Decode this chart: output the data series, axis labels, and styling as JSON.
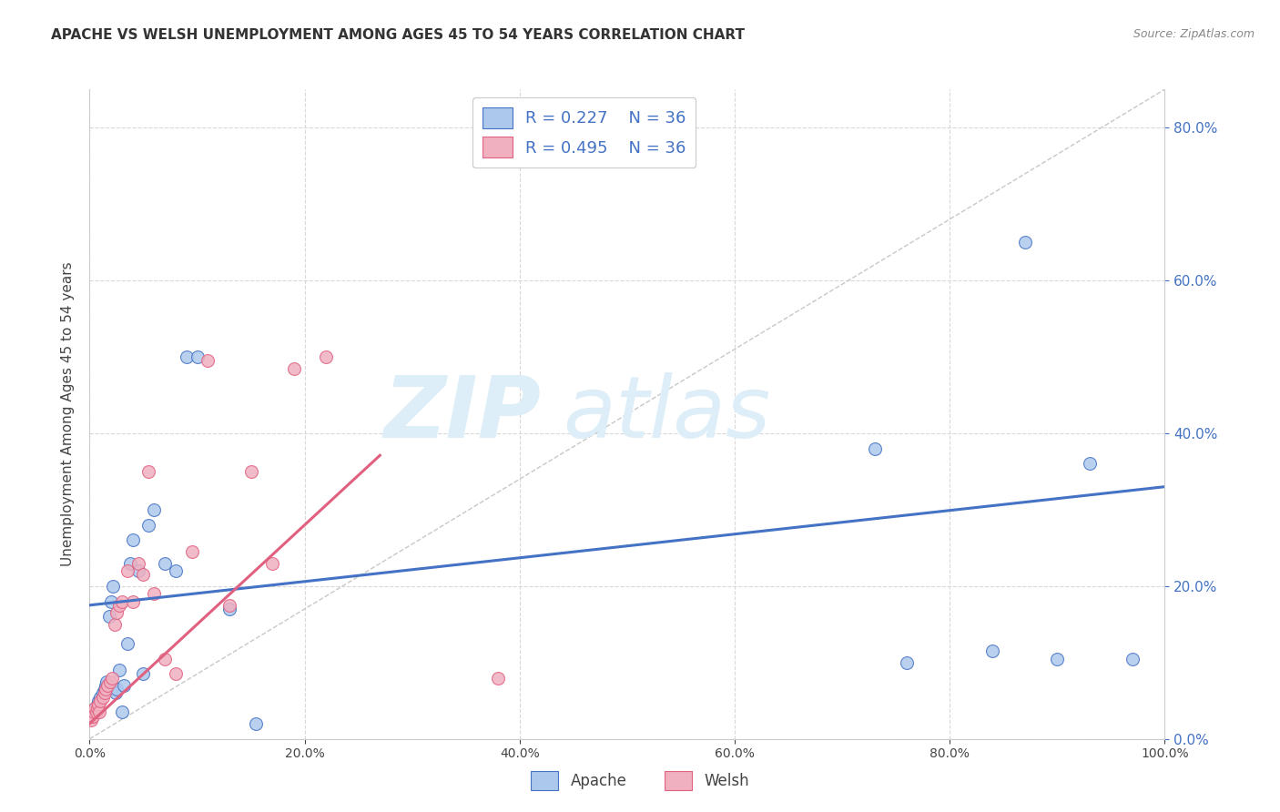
{
  "title": "APACHE VS WELSH UNEMPLOYMENT AMONG AGES 45 TO 54 YEARS CORRELATION CHART",
  "source": "Source: ZipAtlas.com",
  "ylabel": "Unemployment Among Ages 45 to 54 years",
  "xlim": [
    0.0,
    1.0
  ],
  "ylim": [
    0.0,
    0.85
  ],
  "apache_R": "0.227",
  "apache_N": "36",
  "welsh_R": "0.495",
  "welsh_N": "36",
  "apache_color": "#adc8ed",
  "welsh_color": "#f0b0c0",
  "apache_line_color": "#4472c4",
  "welsh_line_color": "#e06080",
  "diagonal_color": "#c8c8c8",
  "background_color": "#ffffff",
  "grid_color": "#d8d8d8",
  "legend_text_color": "#4472c4",
  "right_axis_color": "#4472c4",
  "apache_x": [
    0.005,
    0.007,
    0.008,
    0.01,
    0.012,
    0.014,
    0.015,
    0.016,
    0.018,
    0.02,
    0.022,
    0.024,
    0.025,
    0.028,
    0.03,
    0.032,
    0.035,
    0.038,
    0.04,
    0.045,
    0.05,
    0.055,
    0.06,
    0.07,
    0.08,
    0.09,
    0.1,
    0.13,
    0.155,
    0.73,
    0.76,
    0.84,
    0.87,
    0.9,
    0.93,
    0.97
  ],
  "apache_y": [
    0.04,
    0.045,
    0.05,
    0.055,
    0.06,
    0.065,
    0.07,
    0.075,
    0.16,
    0.18,
    0.2,
    0.06,
    0.065,
    0.09,
    0.035,
    0.07,
    0.125,
    0.23,
    0.26,
    0.22,
    0.085,
    0.28,
    0.3,
    0.23,
    0.22,
    0.5,
    0.5,
    0.17,
    0.02,
    0.38,
    0.1,
    0.115,
    0.65,
    0.105,
    0.36,
    0.105
  ],
  "welsh_x": [
    0.001,
    0.002,
    0.003,
    0.004,
    0.005,
    0.006,
    0.007,
    0.008,
    0.009,
    0.01,
    0.012,
    0.014,
    0.015,
    0.017,
    0.019,
    0.021,
    0.023,
    0.025,
    0.028,
    0.03,
    0.035,
    0.04,
    0.045,
    0.05,
    0.055,
    0.06,
    0.07,
    0.08,
    0.095,
    0.11,
    0.13,
    0.15,
    0.17,
    0.19,
    0.22,
    0.38
  ],
  "welsh_y": [
    0.025,
    0.03,
    0.03,
    0.035,
    0.04,
    0.035,
    0.04,
    0.045,
    0.035,
    0.05,
    0.055,
    0.06,
    0.065,
    0.07,
    0.075,
    0.08,
    0.15,
    0.165,
    0.175,
    0.18,
    0.22,
    0.18,
    0.23,
    0.215,
    0.35,
    0.19,
    0.105,
    0.085,
    0.245,
    0.495,
    0.175,
    0.35,
    0.23,
    0.485,
    0.5,
    0.08
  ],
  "apache_intercept": 0.175,
  "apache_slope": 0.155,
  "welsh_intercept": 0.02,
  "welsh_slope": 1.3,
  "welsh_line_xmax": 0.27,
  "watermark_zip": "ZIP",
  "watermark_atlas": "atlas",
  "watermark_color": "#ddeef8",
  "marker_size": 100
}
